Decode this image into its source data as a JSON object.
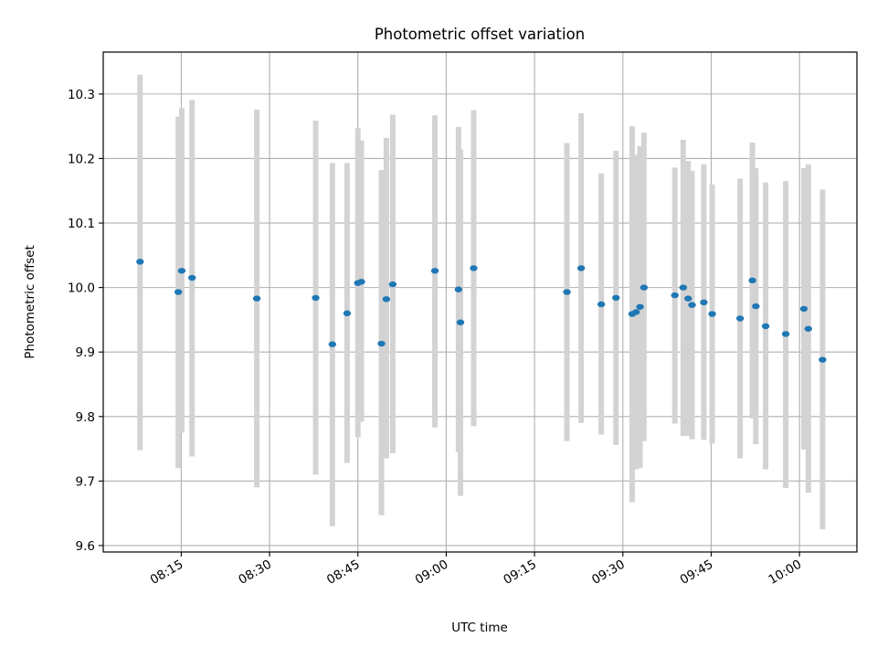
{
  "chart_data": {
    "type": "scatter",
    "title": "Photometric offset variation",
    "xlabel": "UTC time",
    "ylabel": "Photometric offset",
    "grid": true,
    "x_tick_labels": [
      "08:15",
      "08:30",
      "08:45",
      "09:00",
      "09:15",
      "09:30",
      "09:45",
      "10:00"
    ],
    "y_tick_labels": [
      "9.6",
      "9.7",
      "9.8",
      "9.9",
      "10.0",
      "10.1",
      "10.2",
      "10.3"
    ],
    "xlim": [
      "08:01:45",
      "10:09:45"
    ],
    "ylim": [
      9.59,
      10.365
    ],
    "marker_color": "#1f77b4",
    "errorbar_color": "#d3d3d3",
    "points": [
      {
        "x": "08:08:00",
        "y": 10.04,
        "ymin": 9.748,
        "ymax": 10.33
      },
      {
        "x": "08:14:30",
        "y": 9.993,
        "ymin": 9.72,
        "ymax": 10.265
      },
      {
        "x": "08:15:05",
        "y": 10.026,
        "ymin": 9.775,
        "ymax": 10.278
      },
      {
        "x": "08:16:50",
        "y": 10.015,
        "ymin": 9.738,
        "ymax": 10.291
      },
      {
        "x": "08:27:50",
        "y": 9.983,
        "ymin": 9.69,
        "ymax": 10.276
      },
      {
        "x": "08:37:50",
        "y": 9.984,
        "ymin": 9.71,
        "ymax": 10.259
      },
      {
        "x": "08:40:40",
        "y": 9.912,
        "ymin": 9.63,
        "ymax": 10.193
      },
      {
        "x": "08:43:10",
        "y": 9.96,
        "ymin": 9.728,
        "ymax": 10.193
      },
      {
        "x": "08:45:00",
        "y": 10.007,
        "ymin": 9.768,
        "ymax": 10.247
      },
      {
        "x": "08:45:35",
        "y": 10.009,
        "ymin": 9.792,
        "ymax": 10.228
      },
      {
        "x": "08:49:00",
        "y": 9.913,
        "ymin": 9.647,
        "ymax": 10.182
      },
      {
        "x": "08:49:50",
        "y": 9.982,
        "ymin": 9.735,
        "ymax": 10.232
      },
      {
        "x": "08:50:55",
        "y": 10.005,
        "ymin": 9.743,
        "ymax": 10.268
      },
      {
        "x": "08:58:05",
        "y": 10.026,
        "ymin": 9.783,
        "ymax": 10.267
      },
      {
        "x": "09:02:05",
        "y": 9.997,
        "ymin": 9.745,
        "ymax": 10.249
      },
      {
        "x": "09:02:25",
        "y": 9.946,
        "ymin": 9.677,
        "ymax": 10.214
      },
      {
        "x": "09:04:40",
        "y": 10.03,
        "ymin": 9.785,
        "ymax": 10.275
      },
      {
        "x": "09:20:30",
        "y": 9.993,
        "ymin": 9.762,
        "ymax": 10.224
      },
      {
        "x": "09:22:55",
        "y": 10.03,
        "ymin": 9.79,
        "ymax": 10.27
      },
      {
        "x": "09:26:20",
        "y": 9.974,
        "ymin": 9.772,
        "ymax": 10.177
      },
      {
        "x": "09:28:50",
        "y": 9.984,
        "ymin": 9.756,
        "ymax": 10.212
      },
      {
        "x": "09:31:35",
        "y": 9.959,
        "ymin": 9.667,
        "ymax": 10.25
      },
      {
        "x": "09:32:15",
        "y": 9.962,
        "ymin": 9.718,
        "ymax": 10.206
      },
      {
        "x": "09:32:55",
        "y": 9.97,
        "ymin": 9.72,
        "ymax": 10.219
      },
      {
        "x": "09:33:35",
        "y": 10.0,
        "ymin": 9.762,
        "ymax": 10.24
      },
      {
        "x": "09:38:50",
        "y": 9.988,
        "ymin": 9.789,
        "ymax": 10.186
      },
      {
        "x": "09:40:15",
        "y": 10.0,
        "ymin": 9.77,
        "ymax": 10.229
      },
      {
        "x": "09:41:05",
        "y": 9.983,
        "ymin": 9.77,
        "ymax": 10.196
      },
      {
        "x": "09:41:45",
        "y": 9.973,
        "ymin": 9.765,
        "ymax": 10.181
      },
      {
        "x": "09:43:45",
        "y": 9.977,
        "ymin": 9.764,
        "ymax": 10.191
      },
      {
        "x": "09:45:10",
        "y": 9.959,
        "ymin": 9.758,
        "ymax": 10.16
      },
      {
        "x": "09:49:55",
        "y": 9.952,
        "ymin": 9.735,
        "ymax": 10.169
      },
      {
        "x": "09:52:00",
        "y": 10.011,
        "ymin": 9.797,
        "ymax": 10.225
      },
      {
        "x": "09:52:35",
        "y": 9.971,
        "ymin": 9.757,
        "ymax": 10.185
      },
      {
        "x": "09:54:15",
        "y": 9.94,
        "ymin": 9.718,
        "ymax": 10.163
      },
      {
        "x": "09:57:40",
        "y": 9.928,
        "ymin": 9.689,
        "ymax": 10.165
      },
      {
        "x": "10:00:45",
        "y": 9.967,
        "ymin": 9.749,
        "ymax": 10.185
      },
      {
        "x": "10:01:30",
        "y": 9.936,
        "ymin": 9.682,
        "ymax": 10.191
      },
      {
        "x": "10:03:55",
        "y": 9.888,
        "ymin": 9.625,
        "ymax": 10.152
      }
    ]
  }
}
